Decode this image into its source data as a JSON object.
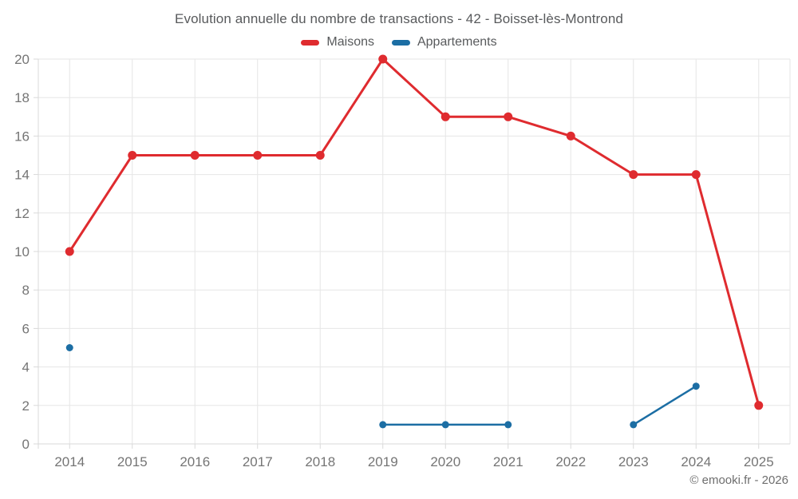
{
  "title": "Evolution annuelle du nombre de transactions - 42 - Boisset-lès-Montrond",
  "footer": "© emooki.fr - 2026",
  "legend": [
    {
      "label": "Maisons",
      "color": "#df2b2f"
    },
    {
      "label": "Appartements",
      "color": "#1c6ea4"
    }
  ],
  "colors": {
    "grid": "#e6e6e6",
    "axis_border": "#d9d9d9",
    "tick": "#d9d9d9",
    "tick_label": "#757575",
    "background": "#ffffff"
  },
  "chart_data": {
    "type": "line",
    "title": "Evolution annuelle du nombre de transactions - 42 - Boisset-lès-Montrond",
    "categories": [
      "2014",
      "2015",
      "2016",
      "2017",
      "2018",
      "2019",
      "2020",
      "2021",
      "2022",
      "2023",
      "2024",
      "2025"
    ],
    "series": [
      {
        "name": "Maisons",
        "color": "#df2b2f",
        "values": [
          10,
          15,
          15,
          15,
          15,
          20,
          17,
          17,
          16,
          14,
          14,
          2
        ],
        "line_width": 3,
        "point_radius": 5.5
      },
      {
        "name": "Appartements",
        "color": "#1c6ea4",
        "values": [
          5,
          null,
          null,
          null,
          null,
          1,
          1,
          1,
          null,
          1,
          3,
          null
        ],
        "line_width": 2.5,
        "point_radius": 4.5
      }
    ],
    "xlabel": "",
    "ylabel": "",
    "ylim": [
      0,
      20
    ],
    "yticks": [
      0,
      2,
      4,
      6,
      8,
      10,
      12,
      14,
      16,
      18,
      20
    ],
    "grid": true,
    "legend_position": "top",
    "annotation": "© emooki.fr - 2026"
  }
}
